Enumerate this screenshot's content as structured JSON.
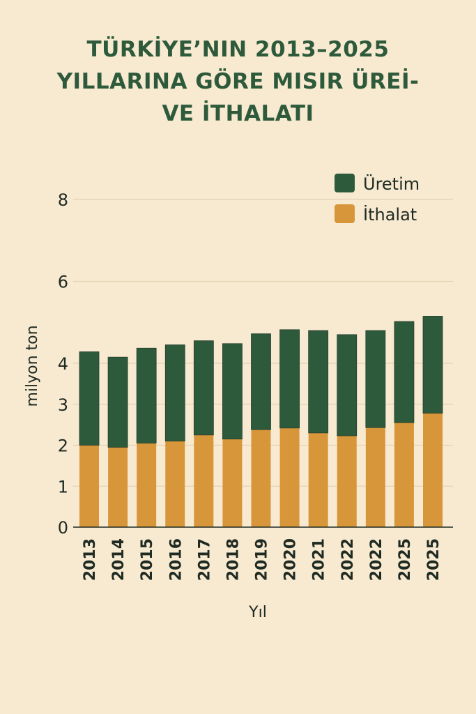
{
  "chart_data": {
    "type": "bar",
    "stacked": true,
    "title_lines": [
      "TÜRKİYE’NIN 2013–2025",
      "YILLARINA GÖRE MISIR ÜREİ-",
      "VE İTHALATI"
    ],
    "xlabel": "Yıl",
    "ylabel": "milyon ton",
    "ylim": [
      0,
      8
    ],
    "yticks": [
      0,
      1,
      2,
      3,
      4,
      6,
      8
    ],
    "grid": true,
    "legend_position": "top-right",
    "categories": [
      "2013",
      "2014",
      "2015",
      "2016",
      "2017",
      "2018",
      "2019",
      "2020",
      "2021",
      "2022",
      "2022",
      "2025",
      "2025"
    ],
    "series": [
      {
        "name": "İthalat",
        "color": "#d8963a",
        "values": [
          2.0,
          1.95,
          2.05,
          2.1,
          2.25,
          2.15,
          2.38,
          2.42,
          2.3,
          2.23,
          2.43,
          2.55,
          2.78
        ]
      },
      {
        "name": "Üretim",
        "color": "#2e5a3c",
        "values": [
          2.28,
          2.2,
          2.32,
          2.35,
          2.3,
          2.33,
          2.34,
          2.4,
          2.5,
          2.47,
          2.37,
          2.47,
          2.37
        ]
      }
    ],
    "legend_order": [
      "Üretim",
      "İthalat"
    ]
  }
}
